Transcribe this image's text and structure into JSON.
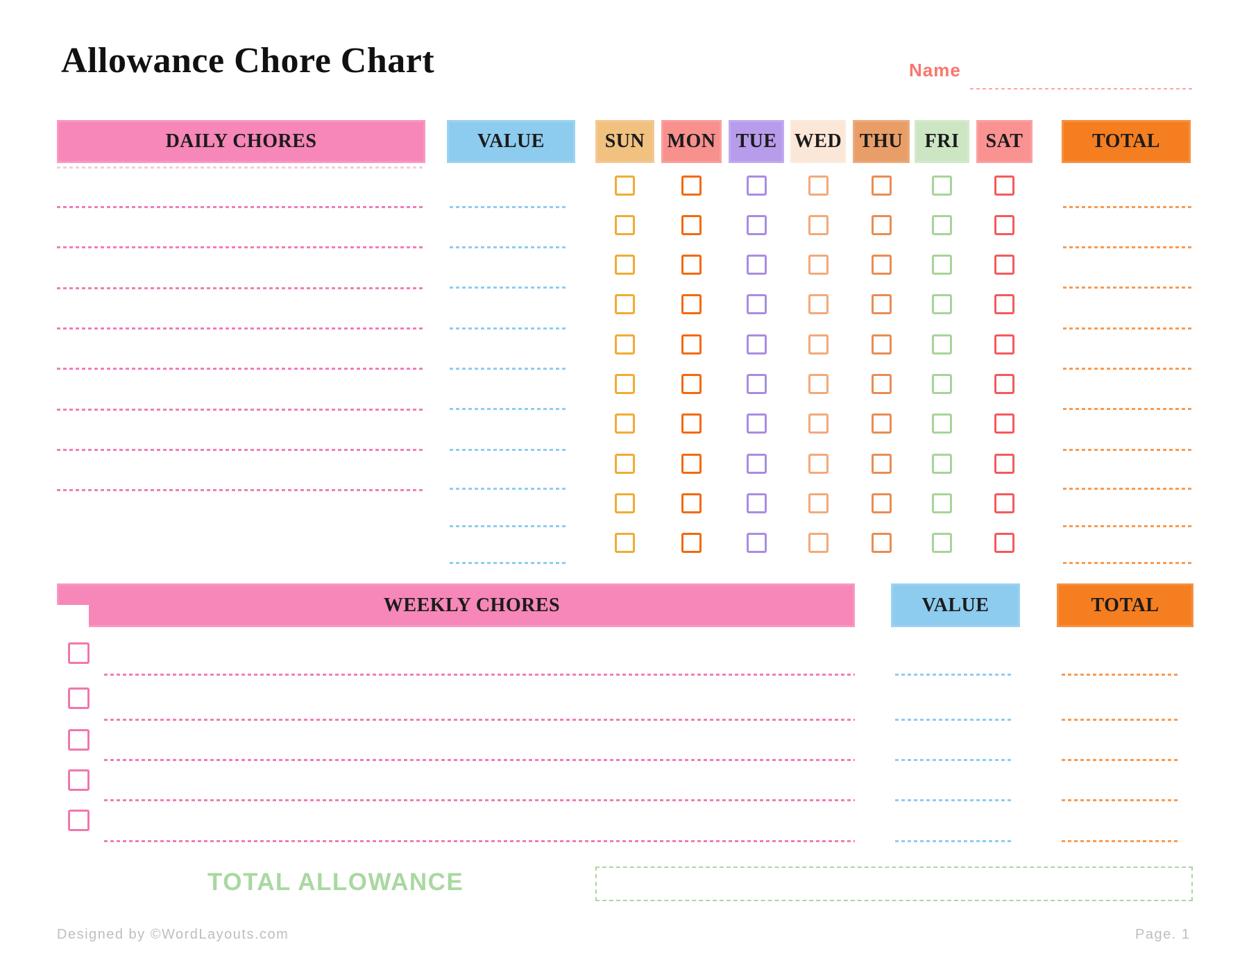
{
  "title": "Allowance Chore Chart",
  "name": {
    "label": "Name",
    "value": "",
    "color": "#F9766D",
    "line_color": "#F8A8A2"
  },
  "daily": {
    "chores_header": "DAILY CHORES",
    "value_header": "VALUE",
    "total_header": "TOTAL",
    "rows": 10,
    "chore_line_rows": 8,
    "days": [
      {
        "label": "SUN",
        "header_bg": "#F1C180",
        "checkbox_color": "#F0AC35"
      },
      {
        "label": "MON",
        "header_bg": "#F8908D",
        "checkbox_color": "#F26A0D"
      },
      {
        "label": "TUE",
        "header_bg": "#B79CEC",
        "checkbox_color": "#A98CE3"
      },
      {
        "label": "WED",
        "header_bg": "#FBE7D7",
        "checkbox_color": "#F3A97A"
      },
      {
        "label": "THU",
        "header_bg": "#E99E68",
        "checkbox_color": "#E88D52"
      },
      {
        "label": "FRI",
        "header_bg": "#CCE6C3",
        "checkbox_color": "#A7D49A"
      },
      {
        "label": "SAT",
        "header_bg": "#FA9292",
        "checkbox_color": "#F45A5C"
      }
    ]
  },
  "weekly": {
    "chores_header": "WEEKLY CHORES",
    "value_header": "VALUE",
    "total_header": "TOTAL",
    "rows": 5,
    "checkbox_color": "#F176AE"
  },
  "total_allowance": {
    "label": "TOTAL ALLOWANCE",
    "value": "",
    "color": "#A9D8A1"
  },
  "footer": {
    "left": "Designed by ©WordLayouts.com",
    "right": "Page. 1",
    "color": "#BEBEBE"
  },
  "colors": {
    "chores_header_bg": "#F687B8",
    "value_header_bg": "#8DCBEF",
    "total_header_bg": "#F57E21",
    "chore_line": "#F07EB5",
    "chore_line_faint": "#F8CADF",
    "value_line": "#8FCDEF",
    "total_line": "#F89B52"
  }
}
